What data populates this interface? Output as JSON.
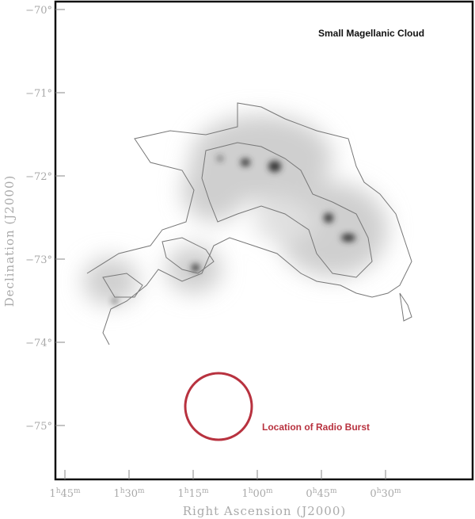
{
  "chart_data": {
    "type": "heatmap",
    "title": "Small Magellanic Cloud",
    "xlabel": "Right Ascension (J2000)",
    "ylabel": "Declination (J2000)",
    "x_ticks": [
      {
        "h": "1",
        "m": "45"
      },
      {
        "h": "1",
        "m": "30"
      },
      {
        "h": "1",
        "m": "15"
      },
      {
        "h": "1",
        "m": "00"
      },
      {
        "h": "0",
        "m": "45"
      },
      {
        "h": "0",
        "m": "30"
      }
    ],
    "y_ticks": [
      "−70°",
      "−71°",
      "−72°",
      "−73°",
      "−74°",
      "−75°"
    ],
    "annotation": {
      "text": "Location of Radio Burst",
      "color": "#b8323f"
    },
    "colors": {
      "image": "grayscale",
      "contours": "#777777",
      "frame": "#111111"
    }
  }
}
